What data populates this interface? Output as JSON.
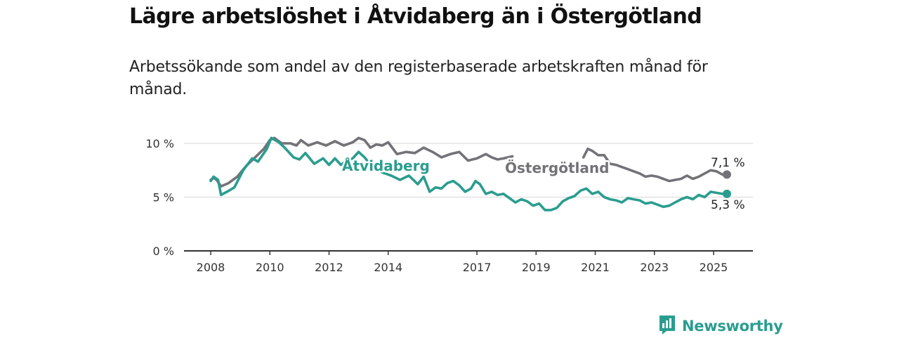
{
  "title": "Lägre arbetslöshet i Åtvidaberg än i Östergötland",
  "subtitle": "Arbetssökande som andel av den registerbaserade arbetskraften månad för månad.",
  "brand": {
    "name": "Newsworthy",
    "icon": "newsworthy-logo-icon",
    "color": "#2a9d8f"
  },
  "chart_data": {
    "type": "line",
    "title": "Lägre arbetslöshet i Åtvidaberg än i Östergötland",
    "subtitle": "Arbetssökande som andel av den registerbaserade arbetskraften månad för månad.",
    "xlabel": "",
    "ylabel": "",
    "xlim": [
      2008,
      2025.7
    ],
    "ylim": [
      0,
      10
    ],
    "x_ticks": [
      2008,
      2010,
      2012,
      2014,
      2017,
      2019,
      2021,
      2023,
      2025
    ],
    "y_ticks": [
      {
        "value": 0,
        "label": "0 %"
      },
      {
        "value": 5,
        "label": "5 %"
      },
      {
        "value": 10,
        "label": "10 %"
      }
    ],
    "grid": "horizontal",
    "legend": "direct labels on lines",
    "series": [
      {
        "name": "Östergötland",
        "color": "#737278",
        "end_label": "7,1 %",
        "points": [
          [
            2008.0,
            6.6
          ],
          [
            2008.1,
            6.8
          ],
          [
            2008.2,
            6.6
          ],
          [
            2008.35,
            6.0
          ],
          [
            2008.6,
            6.3
          ],
          [
            2008.9,
            6.9
          ],
          [
            2009.2,
            7.9
          ],
          [
            2009.5,
            8.7
          ],
          [
            2009.8,
            9.5
          ],
          [
            2010.0,
            10.3
          ],
          [
            2010.15,
            10.5
          ],
          [
            2010.4,
            10.0
          ],
          [
            2010.7,
            10.0
          ],
          [
            2010.9,
            9.8
          ],
          [
            2011.05,
            10.3
          ],
          [
            2011.3,
            9.8
          ],
          [
            2011.6,
            10.1
          ],
          [
            2011.9,
            9.8
          ],
          [
            2012.2,
            10.2
          ],
          [
            2012.5,
            9.8
          ],
          [
            2012.8,
            10.1
          ],
          [
            2013.0,
            10.5
          ],
          [
            2013.2,
            10.3
          ],
          [
            2013.4,
            9.6
          ],
          [
            2013.6,
            9.9
          ],
          [
            2013.8,
            9.8
          ],
          [
            2014.0,
            10.1
          ],
          [
            2014.3,
            9.0
          ],
          [
            2014.6,
            9.2
          ],
          [
            2014.9,
            9.1
          ],
          [
            2015.2,
            9.6
          ],
          [
            2015.5,
            9.2
          ],
          [
            2015.8,
            8.7
          ],
          [
            2016.1,
            9.0
          ],
          [
            2016.4,
            9.2
          ],
          [
            2016.7,
            8.4
          ],
          [
            2017.0,
            8.6
          ],
          [
            2017.3,
            9.0
          ],
          [
            2017.5,
            8.7
          ],
          [
            2017.7,
            8.5
          ],
          [
            2017.9,
            8.6
          ],
          [
            2018.2,
            8.8
          ]
        ],
        "points_2": [
          [
            2020.6,
            8.7
          ],
          [
            2020.75,
            9.5
          ],
          [
            2020.9,
            9.3
          ],
          [
            2021.1,
            8.9
          ],
          [
            2021.3,
            8.9
          ],
          [
            2021.5,
            8.1
          ],
          [
            2021.7,
            8.0
          ],
          [
            2021.9,
            7.8
          ],
          [
            2022.1,
            7.6
          ],
          [
            2022.3,
            7.4
          ],
          [
            2022.5,
            7.2
          ],
          [
            2022.7,
            6.9
          ],
          [
            2022.9,
            7.0
          ],
          [
            2023.1,
            6.9
          ],
          [
            2023.3,
            6.7
          ],
          [
            2023.5,
            6.5
          ],
          [
            2023.7,
            6.6
          ],
          [
            2023.9,
            6.7
          ],
          [
            2024.1,
            7.0
          ],
          [
            2024.3,
            6.7
          ],
          [
            2024.5,
            6.9
          ],
          [
            2024.7,
            7.2
          ],
          [
            2024.9,
            7.5
          ],
          [
            2025.1,
            7.4
          ],
          [
            2025.3,
            7.1
          ],
          [
            2025.45,
            7.1
          ]
        ]
      },
      {
        "name": "Åtvidaberg",
        "color": "#2a9d8f",
        "end_label": "5,3 %",
        "points": [
          [
            2008.0,
            6.5
          ],
          [
            2008.1,
            6.9
          ],
          [
            2008.25,
            6.6
          ],
          [
            2008.35,
            5.2
          ],
          [
            2008.55,
            5.5
          ],
          [
            2008.8,
            5.9
          ],
          [
            2009.1,
            7.5
          ],
          [
            2009.4,
            8.6
          ],
          [
            2009.6,
            8.3
          ],
          [
            2009.9,
            9.5
          ],
          [
            2010.05,
            10.5
          ],
          [
            2010.3,
            10.1
          ],
          [
            2010.5,
            9.6
          ],
          [
            2010.8,
            8.7
          ],
          [
            2011.0,
            8.5
          ],
          [
            2011.2,
            9.1
          ],
          [
            2011.5,
            8.1
          ],
          [
            2011.8,
            8.6
          ],
          [
            2012.0,
            8.0
          ],
          [
            2012.2,
            8.6
          ],
          [
            2012.4,
            8.0
          ],
          [
            2012.6,
            8.4
          ],
          [
            2012.8,
            8.6
          ],
          [
            2013.0,
            9.2
          ],
          [
            2013.2,
            8.7
          ],
          [
            2013.5,
            7.7
          ],
          [
            2013.8,
            7.3
          ],
          [
            2014.1,
            7.0
          ],
          [
            2014.4,
            6.6
          ],
          [
            2014.7,
            7.0
          ],
          [
            2015.0,
            6.2
          ],
          [
            2015.2,
            6.9
          ],
          [
            2015.4,
            5.5
          ],
          [
            2015.6,
            5.9
          ],
          [
            2015.8,
            5.8
          ],
          [
            2016.0,
            6.3
          ],
          [
            2016.2,
            6.5
          ],
          [
            2016.4,
            6.1
          ],
          [
            2016.6,
            5.5
          ],
          [
            2016.8,
            5.8
          ],
          [
            2016.95,
            6.5
          ],
          [
            2017.1,
            6.2
          ],
          [
            2017.3,
            5.3
          ],
          [
            2017.5,
            5.5
          ],
          [
            2017.7,
            5.2
          ],
          [
            2017.9,
            5.3
          ],
          [
            2018.1,
            4.9
          ],
          [
            2018.3,
            4.5
          ],
          [
            2018.5,
            4.8
          ],
          [
            2018.7,
            4.6
          ],
          [
            2018.9,
            4.2
          ],
          [
            2019.1,
            4.4
          ],
          [
            2019.3,
            3.8
          ],
          [
            2019.5,
            3.8
          ],
          [
            2019.7,
            4.0
          ],
          [
            2019.9,
            4.6
          ],
          [
            2020.1,
            4.9
          ],
          [
            2020.3,
            5.1
          ],
          [
            2020.5,
            5.6
          ],
          [
            2020.7,
            5.8
          ],
          [
            2020.9,
            5.3
          ],
          [
            2021.1,
            5.5
          ],
          [
            2021.3,
            5.0
          ],
          [
            2021.5,
            4.8
          ],
          [
            2021.7,
            4.7
          ],
          [
            2021.9,
            4.5
          ],
          [
            2022.1,
            4.9
          ],
          [
            2022.3,
            4.8
          ],
          [
            2022.5,
            4.7
          ],
          [
            2022.7,
            4.4
          ],
          [
            2022.9,
            4.5
          ],
          [
            2023.1,
            4.3
          ],
          [
            2023.3,
            4.1
          ],
          [
            2023.5,
            4.2
          ],
          [
            2023.7,
            4.5
          ],
          [
            2023.9,
            4.8
          ],
          [
            2024.1,
            5.0
          ],
          [
            2024.3,
            4.8
          ],
          [
            2024.5,
            5.2
          ],
          [
            2024.7,
            5.0
          ],
          [
            2024.9,
            5.5
          ],
          [
            2025.1,
            5.4
          ],
          [
            2025.3,
            5.3
          ],
          [
            2025.45,
            5.3
          ]
        ]
      }
    ]
  }
}
